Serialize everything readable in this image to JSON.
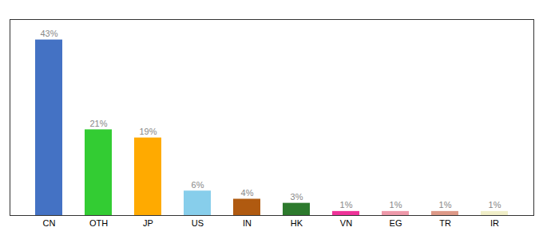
{
  "chart_data": {
    "type": "bar",
    "categories": [
      "CN",
      "OTH",
      "JP",
      "US",
      "IN",
      "HK",
      "VN",
      "EG",
      "TR",
      "IR"
    ],
    "values": [
      43,
      21,
      19,
      6,
      4,
      3,
      1,
      1,
      1,
      1
    ],
    "value_labels": [
      "43%",
      "21%",
      "19%",
      "6%",
      "4%",
      "3%",
      "1%",
      "1%",
      "1%",
      "1%"
    ],
    "colors": [
      "#4472c4",
      "#33cc33",
      "#ffaa00",
      "#87ceeb",
      "#b05a10",
      "#2d7a2d",
      "#ee3399",
      "#ee99aa",
      "#dd9988",
      "#f0eec8"
    ],
    "ylim": [
      0,
      48
    ],
    "data_labels": true,
    "tick_labels": "x",
    "grid": false
  }
}
